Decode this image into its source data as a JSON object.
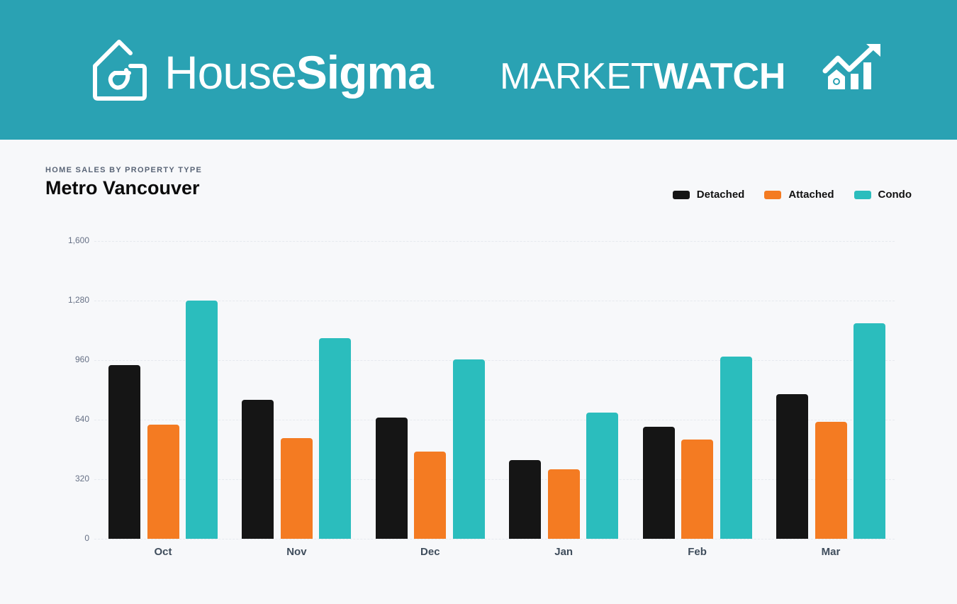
{
  "header": {
    "brand_light": "House",
    "brand_bold": "Sigma",
    "product_light": "MARKET",
    "product_bold": "WATCH",
    "logo_icon": "house-spiral-icon",
    "product_icon": "house-growth-chart-icon",
    "banner_color": "#2aa2b3"
  },
  "chart_header": {
    "subtitle": "HOME SALES BY PROPERTY TYPE",
    "title": "Metro Vancouver"
  },
  "legend": [
    {
      "label": "Detached",
      "color": "#151515"
    },
    {
      "label": "Attached",
      "color": "#f47b22"
    },
    {
      "label": "Condo",
      "color": "#2bbdbd"
    }
  ],
  "chart_data": {
    "type": "bar",
    "title": "Metro Vancouver",
    "subtitle": "HOME SALES BY PROPERTY TYPE",
    "xlabel": "",
    "ylabel": "",
    "categories": [
      "Oct",
      "Nov",
      "Dec",
      "Jan",
      "Feb",
      "Mar"
    ],
    "series": [
      {
        "name": "Detached",
        "color": "#151515",
        "values": [
          934,
          745,
          650,
          422,
          601,
          778
        ]
      },
      {
        "name": "Attached",
        "color": "#f47b22",
        "values": [
          612,
          541,
          470,
          372,
          535,
          629
        ]
      },
      {
        "name": "Condo",
        "color": "#2bbdbd",
        "values": [
          1281,
          1077,
          963,
          678,
          978,
          1159
        ]
      }
    ],
    "yticks": [
      "0",
      "320",
      "640",
      "960",
      "1,280",
      "1,600"
    ],
    "ylim": [
      0,
      1600
    ],
    "grid": true,
    "legend_position": "top-right"
  }
}
